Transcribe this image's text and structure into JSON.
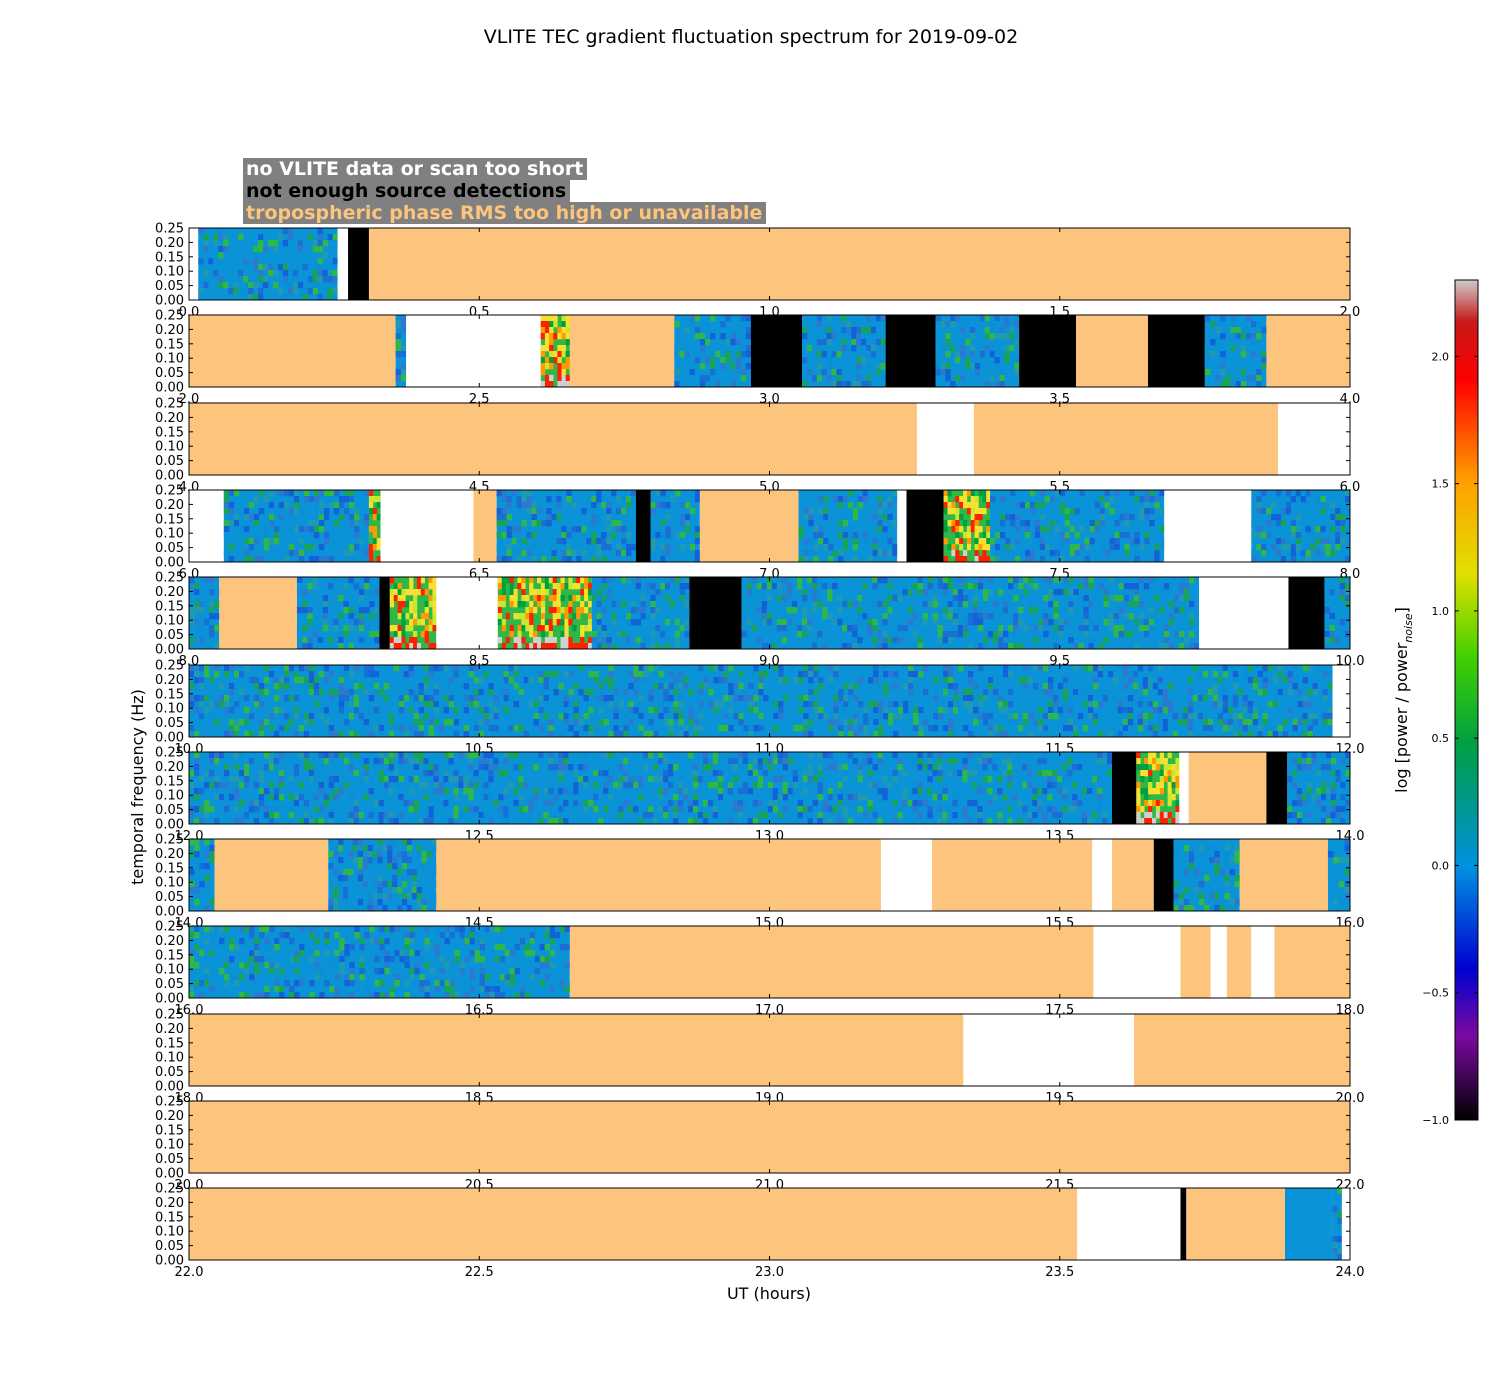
{
  "chart_data": {
    "type": "heatmap",
    "title": "VLITE TEC gradient fluctuation spectrum for 2019-09-02",
    "xlabel": "UT (hours)",
    "ylabel": "temporal frequency (Hz)",
    "ylim": [
      0,
      0.25
    ],
    "yticks": [
      "0.00",
      "0.05",
      "0.10",
      "0.15",
      "0.20",
      "0.25"
    ],
    "colorbar": {
      "label": "log [power / power",
      "label_sub": "noise",
      "label_end": "]",
      "range": [
        -1.0,
        2.3
      ],
      "ticks": [
        "−1.0",
        "−0.5",
        "0.0",
        "0.5",
        "1.0",
        "1.5",
        "2.0"
      ],
      "tick_values": [
        -1.0,
        -0.5,
        0.0,
        0.5,
        1.0,
        1.5,
        2.0
      ],
      "colors": [
        "#000000",
        "#7a0aa0",
        "#0000d0",
        "#0090e0",
        "#00a040",
        "#40d000",
        "#e0e000",
        "#ffa000",
        "#ff0000",
        "#c81818",
        "#cccccc"
      ]
    },
    "legend": [
      {
        "label": "no VLITE data or scan too short",
        "color": "#ffffff"
      },
      {
        "label": "not enough source detections",
        "color": "#000000"
      },
      {
        "label": "tropospheric phase RMS too high or unavailable",
        "color": "#fdc47d"
      }
    ],
    "state_colors": {
      "W": "#ffffff",
      "K": "#000000",
      "O": "#fdc47d",
      "B": "#0b93d8",
      "N": "#2a75d0",
      "H": "#f8e030"
    },
    "panels": [
      {
        "range": [
          0,
          2
        ],
        "ticks": [
          "0.0",
          "0.5",
          "1.0",
          "1.5",
          "2.0"
        ],
        "segments": [
          [
            0,
            0.016,
            "W"
          ],
          [
            0.016,
            0.256,
            "N"
          ],
          [
            0.256,
            0.274,
            "W"
          ],
          [
            0.274,
            0.31,
            "K"
          ],
          [
            0.31,
            2.0,
            "O"
          ]
        ]
      },
      {
        "range": [
          2,
          4
        ],
        "ticks": [
          "2.0",
          "2.5",
          "3.0",
          "3.5",
          "4.0"
        ],
        "segments": [
          [
            2.0,
            2.356,
            "O"
          ],
          [
            2.356,
            2.374,
            "N"
          ],
          [
            2.374,
            2.606,
            "W"
          ],
          [
            2.606,
            2.656,
            "H"
          ],
          [
            2.656,
            2.836,
            "O"
          ],
          [
            2.836,
            2.968,
            "N"
          ],
          [
            2.968,
            3.056,
            "K"
          ],
          [
            3.056,
            3.2,
            "N"
          ],
          [
            3.2,
            3.286,
            "K"
          ],
          [
            3.286,
            3.43,
            "N"
          ],
          [
            3.43,
            3.528,
            "K"
          ],
          [
            3.528,
            3.652,
            "O"
          ],
          [
            3.652,
            3.75,
            "K"
          ],
          [
            3.75,
            3.856,
            "N"
          ],
          [
            3.856,
            4.0,
            "O"
          ]
        ]
      },
      {
        "range": [
          4,
          6
        ],
        "ticks": [
          "4.0",
          "4.5",
          "5.0",
          "5.5",
          "6.0"
        ],
        "segments": [
          [
            4.0,
            5.254,
            "O"
          ],
          [
            5.254,
            5.352,
            "W"
          ],
          [
            5.352,
            5.876,
            "O"
          ],
          [
            5.876,
            6.0,
            "W"
          ]
        ]
      },
      {
        "range": [
          6,
          8
        ],
        "ticks": [
          "6.0",
          "6.5",
          "7.0",
          "7.5",
          "8.0"
        ],
        "segments": [
          [
            6.0,
            6.06,
            "W"
          ],
          [
            6.06,
            6.31,
            "N"
          ],
          [
            6.31,
            6.33,
            "H"
          ],
          [
            6.33,
            6.49,
            "W"
          ],
          [
            6.49,
            6.53,
            "O"
          ],
          [
            6.53,
            6.77,
            "N"
          ],
          [
            6.77,
            6.795,
            "K"
          ],
          [
            6.795,
            6.88,
            "N"
          ],
          [
            6.88,
            7.05,
            "O"
          ],
          [
            7.05,
            7.22,
            "N"
          ],
          [
            7.22,
            7.236,
            "W"
          ],
          [
            7.236,
            7.3,
            "K"
          ],
          [
            7.3,
            7.38,
            "H"
          ],
          [
            7.38,
            7.68,
            "N"
          ],
          [
            7.68,
            7.83,
            "W"
          ],
          [
            7.83,
            8.0,
            "N"
          ]
        ]
      },
      {
        "range": [
          8,
          10
        ],
        "ticks": [
          "8.0",
          "8.5",
          "9.0",
          "9.5",
          "10.0"
        ],
        "segments": [
          [
            8.0,
            8.052,
            "N"
          ],
          [
            8.052,
            8.186,
            "O"
          ],
          [
            8.186,
            8.328,
            "N"
          ],
          [
            8.328,
            8.346,
            "K"
          ],
          [
            8.346,
            8.426,
            "H"
          ],
          [
            8.426,
            8.532,
            "W"
          ],
          [
            8.532,
            8.694,
            "H"
          ],
          [
            8.694,
            8.862,
            "N"
          ],
          [
            8.862,
            8.952,
            "K"
          ],
          [
            8.952,
            9.74,
            "N"
          ],
          [
            9.74,
            9.894,
            "W"
          ],
          [
            9.894,
            9.956,
            "K"
          ],
          [
            9.956,
            10.0,
            "N"
          ]
        ]
      },
      {
        "range": [
          10,
          12
        ],
        "ticks": [
          "10.0",
          "10.5",
          "11.0",
          "11.5",
          "12.0"
        ],
        "segments": [
          [
            10.0,
            11.97,
            "N"
          ],
          [
            11.97,
            12.0,
            "W"
          ]
        ]
      },
      {
        "range": [
          12,
          14
        ],
        "ticks": [
          "12.0",
          "12.5",
          "13.0",
          "13.5",
          "14.0"
        ],
        "segments": [
          [
            12.0,
            13.59,
            "N"
          ],
          [
            13.59,
            13.632,
            "K"
          ],
          [
            13.632,
            13.706,
            "H"
          ],
          [
            13.706,
            13.722,
            "W"
          ],
          [
            13.722,
            13.856,
            "O"
          ],
          [
            13.856,
            13.892,
            "K"
          ],
          [
            13.892,
            14.0,
            "N"
          ]
        ]
      },
      {
        "range": [
          14,
          16
        ],
        "ticks": [
          "14.0",
          "14.5",
          "15.0",
          "15.5",
          "16.0"
        ],
        "segments": [
          [
            14.0,
            14.044,
            "N"
          ],
          [
            14.044,
            14.24,
            "O"
          ],
          [
            14.24,
            14.426,
            "N"
          ],
          [
            14.426,
            15.192,
            "O"
          ],
          [
            15.192,
            15.28,
            "W"
          ],
          [
            15.28,
            15.556,
            "O"
          ],
          [
            15.556,
            15.59,
            "W"
          ],
          [
            15.59,
            15.662,
            "O"
          ],
          [
            15.662,
            15.696,
            "K"
          ],
          [
            15.696,
            15.81,
            "N"
          ],
          [
            15.81,
            15.962,
            "O"
          ],
          [
            15.962,
            16.0,
            "N"
          ]
        ]
      },
      {
        "range": [
          16,
          18
        ],
        "ticks": [
          "16.0",
          "16.5",
          "17.0",
          "17.5",
          "18.0"
        ],
        "segments": [
          [
            16.0,
            16.656,
            "N"
          ],
          [
            16.656,
            17.558,
            "O"
          ],
          [
            17.558,
            17.708,
            "W"
          ],
          [
            17.708,
            17.76,
            "O"
          ],
          [
            17.76,
            17.788,
            "W"
          ],
          [
            17.788,
            17.83,
            "O"
          ],
          [
            17.83,
            17.87,
            "W"
          ],
          [
            17.87,
            18.0,
            "O"
          ]
        ]
      },
      {
        "range": [
          18,
          20
        ],
        "ticks": [
          "18.0",
          "18.5",
          "19.0",
          "19.5",
          "20.0"
        ],
        "segments": [
          [
            18.0,
            19.334,
            "O"
          ],
          [
            19.334,
            19.628,
            "W"
          ],
          [
            19.628,
            20.0,
            "O"
          ]
        ]
      },
      {
        "range": [
          20,
          22
        ],
        "ticks": [
          "20.0",
          "20.5",
          "21.0",
          "21.5",
          "22.0"
        ],
        "segments": [
          [
            20.0,
            22.0,
            "O"
          ]
        ]
      },
      {
        "range": [
          22,
          24
        ],
        "ticks": [
          "22.0",
          "22.5",
          "23.0",
          "23.5",
          "24.0"
        ],
        "segments": [
          [
            22.0,
            23.53,
            "O"
          ],
          [
            23.53,
            23.708,
            "W"
          ],
          [
            23.708,
            23.718,
            "K"
          ],
          [
            23.718,
            23.888,
            "O"
          ],
          [
            23.888,
            23.97,
            "B"
          ],
          [
            23.97,
            23.986,
            "N"
          ],
          [
            23.986,
            24.0,
            "W"
          ]
        ]
      }
    ]
  }
}
